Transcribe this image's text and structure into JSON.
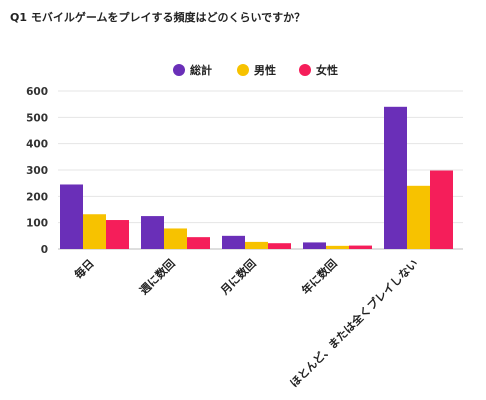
{
  "chart_data": {
    "type": "bar",
    "title": "Q1 モバイルゲームをプレイする頻度はどのくらいですか？",
    "categories": [
      "毎日",
      "週に数回",
      "月に数回",
      "年に数回",
      "ほとんど、または全くプレイしない"
    ],
    "series": [
      {
        "name": "総計",
        "color": "#6a2fb8",
        "values": [
          245,
          125,
          50,
          25,
          540
        ]
      },
      {
        "name": "男性",
        "color": "#f7c200",
        "values": [
          132,
          78,
          27,
          12,
          240
        ]
      },
      {
        "name": "女性",
        "color": "#f51e5a",
        "values": [
          110,
          45,
          22,
          13,
          298
        ]
      }
    ],
    "ylim": [
      0,
      600
    ],
    "yticks": [
      "0",
      "100",
      "200",
      "300",
      "400",
      "500",
      "600"
    ],
    "grid": true,
    "legend_position": "top-center"
  }
}
